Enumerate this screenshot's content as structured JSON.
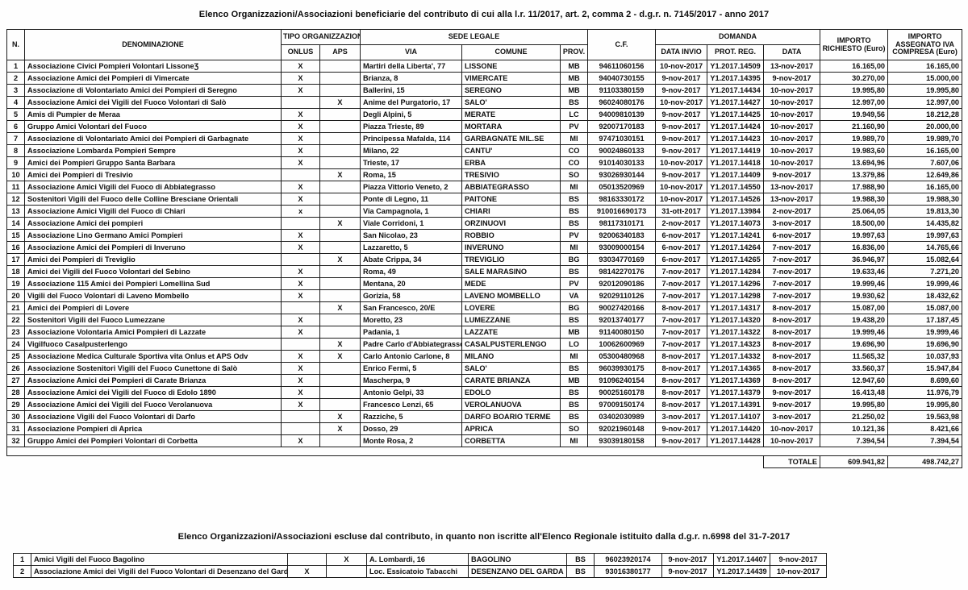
{
  "titles": {
    "main": "Elenco Organizzazioni/Associazioni beneficiarie del contributo di cui alla l.r. 11/2017,  art. 2, comma 2 - d.g.r. n. 7145/2017 - anno 2017",
    "excluded": "Elenco Organizzazioni/Associazioni escluse dal contributo, in quanto non iscritte all'Elenco Regionale istituito dalla d.g.r. n.6998 del 31-7-2017"
  },
  "headers": {
    "n": "N.",
    "denominazione": "DENOMINAZIONE",
    "tipo_organizzazione": "TIPO ORGANIZZAZIONE",
    "onlus": "ONLUS",
    "aps": "APS",
    "sede_legale": "SEDE LEGALE",
    "via": "VIA",
    "comune": "COMUNE",
    "prov": "PROV.",
    "cf": "C.F.",
    "domanda": "DOMANDA",
    "data_invio": "DATA INVIO",
    "prot_reg": "PROT. REG.",
    "data": "DATA",
    "importo_richiesto": "IMPORTO RICHIESTO (Euro)",
    "importo_assegnato": "IMPORTO ASSEGNATO IVA COMPRESA (Euro)"
  },
  "main_table": {
    "rows": [
      [
        "1",
        "Associazione Civici Pompieri Volontari LissoneƷ",
        "X",
        "",
        "Martiri della Liberta', 77",
        "LISSONE",
        "MB",
        "94611060156",
        "10-nov-2017",
        "Y1.2017.14509",
        "13-nov-2017",
        "16.165,00",
        "16.165,00"
      ],
      [
        "2",
        "Associazione Amici dei Pompieri di Vimercate",
        "X",
        "",
        "Brianza, 8",
        "VIMERCATE",
        "MB",
        "94040730155",
        "9-nov-2017",
        "Y1.2017.14395",
        "9-nov-2017",
        "30.270,00",
        "15.000,00"
      ],
      [
        "3",
        "Associazione di Volontariato Amici dei Pompieri di Seregno",
        "X",
        "",
        "Ballerini, 15",
        "SEREGNO",
        "MB",
        "91103380159",
        "9-nov-2017",
        "Y1.2017.14434",
        "10-nov-2017",
        "19.995,80",
        "19.995,80"
      ],
      [
        "4",
        "Associazione Amici dei Vigili del Fuoco Volontari di Salò",
        "",
        "X",
        "Anime del Purgatorio, 17",
        "SALO'",
        "BS",
        "96024080176",
        "10-nov-2017",
        "Y1.2017.14427",
        "10-nov-2017",
        "12.997,00",
        "12.997,00"
      ],
      [
        "5",
        "Amis di Pumpier de Meraa",
        "X",
        "",
        "Degli Alpini, 5",
        "MERATE",
        "LC",
        "94009810139",
        "9-nov-2017",
        "Y1.2017.14425",
        "10-nov-2017",
        "19.949,56",
        "18.212,28"
      ],
      [
        "6",
        "Gruppo Amici Volontari del Fuoco",
        "X",
        "",
        "Piazza Trieste, 89",
        "MORTARA",
        "PV",
        "92007170183",
        "9-nov-2017",
        "Y1.2017.14424",
        "10-nov-2017",
        "21.160,90",
        "20.000,00"
      ],
      [
        "7",
        "Associazione di Volontariato Amici dei Pompieri di Garbagnate",
        "X",
        "",
        "Principessa Mafalda, 114",
        "GARBAGNATE MIL.SE",
        "MI",
        "97471030151",
        "9-nov-2017",
        "Y1.2017.14423",
        "10-nov-2017",
        "19.989,70",
        "19.989,70"
      ],
      [
        "8",
        "Associazione Lombarda Pompieri Sempre",
        "X",
        "",
        "Milano, 22",
        "CANTU'",
        "CO",
        "90024860133",
        "9-nov-2017",
        "Y1.2017.14419",
        "10-nov-2017",
        "19.983,60",
        "16.165,00"
      ],
      [
        "9",
        "Amici dei Pompieri Gruppo Santa Barbara",
        "X",
        "",
        "Trieste, 17",
        "ERBA",
        "CO",
        "91014030133",
        "10-nov-2017",
        "Y1.2017.14418",
        "10-nov-2017",
        "13.694,96",
        "7.607,06"
      ],
      [
        "10",
        "Amici dei Pompieri di Tresivio",
        "",
        "X",
        "Roma, 15",
        "TRESIVIO",
        "SO",
        "93026930144",
        "9-nov-2017",
        "Y1.2017.14409",
        "9-nov-2017",
        "13.379,86",
        "12.649,86"
      ],
      [
        "11",
        "Associazione Amici Vigili del Fuoco di Abbiategrasso",
        "X",
        "",
        "Piazza Vittorio Veneto, 2",
        "ABBIATEGRASSO",
        "MI",
        "05013520969",
        "10-nov-2017",
        "Y1.2017.14550",
        "13-nov-2017",
        "17.988,90",
        "16.165,00"
      ],
      [
        "12",
        "Sostenitori Vigili del Fuoco delle Colline Bresciane Orientali",
        "X",
        "",
        "Ponte di Legno, 11",
        "PAITONE",
        "BS",
        "98163330172",
        "10-nov-2017",
        "Y1.2017.14526",
        "13-nov-2017",
        "19.988,30",
        "19.988,30"
      ],
      [
        "13",
        "Associazione Amici Vigili del Fuoco di Chiari",
        "x",
        "",
        "Via Campagnola, 1",
        "CHIARI",
        "BS",
        "910016690173",
        "31-ott-2017",
        "Y1.2017.13984",
        "2-nov-2017",
        "25.064,05",
        "19.813,30"
      ],
      [
        "14",
        "Associazione Amici dei pompieri",
        "",
        "X",
        "Viale Corridoni, 1",
        "ORZINUOVI",
        "BS",
        "98117310171",
        "2-nov-2017",
        "Y1.2017.14073",
        "3-nov-2017",
        "18.500,00",
        "14.435,82"
      ],
      [
        "15",
        "Associazione Lino Germano Amici Pompieri",
        "X",
        "",
        "San Nicolao, 23",
        "ROBBIO",
        "PV",
        "92006340183",
        "6-nov-2017",
        "Y1.2017.14241",
        "6-nov-2017",
        "19.997,63",
        "19.997,63"
      ],
      [
        "16",
        "Associazione Amici dei Pompieri di Inveruno",
        "X",
        "",
        "Lazzaretto, 5",
        "INVERUNO",
        "MI",
        "93009000154",
        "6-nov-2017",
        "Y1.2017.14264",
        "7-nov-2017",
        "16.836,00",
        "14.765,66"
      ],
      [
        "17",
        "Amici dei Pompieri di Treviglio",
        "",
        "X",
        "Abate Crippa, 34",
        "TREVIGLIO",
        "BG",
        "93034770169",
        "6-nov-2017",
        "Y1.2017.14265",
        "7-nov-2017",
        "36.946,97",
        "15.082,64"
      ],
      [
        "18",
        "Amici dei Vigili del Fuoco Volontari del Sebino",
        "X",
        "",
        "Roma, 49",
        "SALE MARASINO",
        "BS",
        "98142270176",
        "7-nov-2017",
        "Y1.2017.14284",
        "7-nov-2017",
        "19.633,46",
        "7.271,20"
      ],
      [
        "19",
        "Associazione 115 Amici dei Pompieri Lomellina Sud",
        "X",
        "",
        "Mentana, 20",
        "MEDE",
        "PV",
        "92012090186",
        "7-nov-2017",
        "Y1.2017.14296",
        "7-nov-2017",
        "19.999,46",
        "19.999,46"
      ],
      [
        "20",
        "Vigili del Fuoco Volontari di Laveno Mombello",
        "X",
        "",
        "Gorizia, 58",
        "LAVENO MOMBELLO",
        "VA",
        "92029110126",
        "7-nov-2017",
        "Y1.2017.14298",
        "7-nov-2017",
        "19.930,62",
        "18.432,62"
      ],
      [
        "21",
        "Amici dei Pompieri di Lovere",
        "",
        "X",
        "San Francesco, 20/E",
        "LOVERE",
        "BG",
        "90027420166",
        "8-nov-2017",
        "Y1.2017.14317",
        "8-nov-2017",
        "15.087,00",
        "15.087,00"
      ],
      [
        "22",
        "Sostenitori Vigili del Fuoco Lumezzane",
        "X",
        "",
        "Moretto, 23",
        "LUMEZZANE",
        "BS",
        "92013740177",
        "7-nov-2017",
        "Y1.2017.14320",
        "8-nov-2017",
        "19.438,20",
        "17.187,45"
      ],
      [
        "23",
        "Associazione Volontaria Amici Pompieri di Lazzate",
        "X",
        "",
        "Padania, 1",
        "LAZZATE",
        "MB",
        "91140080150",
        "7-nov-2017",
        "Y1.2017.14322",
        "8-nov-2017",
        "19.999,46",
        "19.999,46"
      ],
      [
        "24",
        "Vigilfuoco Casalpusterlengo",
        "",
        "X",
        "Padre Carlo d'Abbiategrasso,",
        "CASALPUSTERLENGO",
        "LO",
        "10062600969",
        "7-nov-2017",
        "Y1.2017.14323",
        "8-nov-2017",
        "19.696,90",
        "19.696,90"
      ],
      [
        "25",
        "Associazione Medica Culturale Sportiva vita Onlus et APS Odv",
        "X",
        "X",
        "Carlo Antonio Carlone, 8",
        "MILANO",
        "MI",
        "05300480968",
        "8-nov-2017",
        "Y1.2017.14332",
        "8-nov-2017",
        "11.565,32",
        "10.037,93"
      ],
      [
        "26",
        "Associazione Sostenitori Vigili del Fuoco Cunettone di Salò",
        "X",
        "",
        "Enrico Fermi, 5",
        "SALO'",
        "BS",
        "96039930175",
        "8-nov-2017",
        "Y1.2017.14365",
        "8-nov-2017",
        "33.560,37",
        "15.947,84"
      ],
      [
        "27",
        "Associazione Amici dei Pompieri di Carate Brianza",
        "X",
        "",
        "Mascherpa, 9",
        "CARATE BRIANZA",
        "MB",
        "91096240154",
        "8-nov-2017",
        "Y1.2017.14369",
        "8-nov-2017",
        "12.947,60",
        "8.699,60"
      ],
      [
        "28",
        "Associazione Amici dei Vigili del Fuoco di Edolo 1890",
        "X",
        "",
        "Antonio Gelpi, 33",
        "EDOLO",
        "BS",
        "90025160178",
        "8-nov-2017",
        "Y1.2017.14379",
        "9-nov-2017",
        "16.413,48",
        "11.976,79"
      ],
      [
        "29",
        "Associazione Amici dei Vigili del Fuoco Verolanuova",
        "X",
        "",
        "Francesco Lenzi, 65",
        "VEROLANUOVA",
        "BS",
        "97009150174",
        "8-nov-2017",
        "Y1.2017.14391",
        "9-nov-2017",
        "19.995,80",
        "19.995,80"
      ],
      [
        "30",
        "Associazione Vigili del Fuoco Volontari di Darfo",
        "",
        "X",
        "Razziche, 5",
        "DARFO BOARIO TERME",
        "BS",
        "03402030989",
        "3-nov-2017",
        "Y1.2017.14107",
        "3-nov-2017",
        "21.250,02",
        "19.563,98"
      ],
      [
        "31",
        "Associazione Pompieri di Aprica",
        "",
        "X",
        "Dosso, 29",
        "APRICA",
        "SO",
        "92021960148",
        "9-nov-2017",
        "Y1.2017.14420",
        "10-nov-2017",
        "10.121,36",
        "8.421,66"
      ],
      [
        "32",
        "Gruppo Amici dei Pompieri Volontari di Corbetta",
        "X",
        "",
        "Monte Rosa, 2",
        "CORBETTA",
        "MI",
        "93039180158",
        "9-nov-2017",
        "Y1.2017.14428",
        "10-nov-2017",
        "7.394,54",
        "7.394,54"
      ]
    ],
    "totale_label": "TOTALE",
    "totale_richiesto": "609.941,82",
    "totale_assegnato": "498.742,27"
  },
  "excluded_table": {
    "rows": [
      [
        "1",
        "Amici Vigili del Fuoco Bagolino",
        "",
        "X",
        "A. Lombardi, 16",
        "BAGOLINO",
        "BS",
        "96023920174",
        "9-nov-2017",
        "Y1.2017.14407",
        "9-nov-2017"
      ],
      [
        "2",
        "Associazione Amici dei Vigili del Fuoco Volontari di Desenzano del Garda",
        "X",
        "",
        "Loc. Essicatoio Tabacchi",
        "DESENZANO DEL GARDA",
        "BS",
        "93016380177",
        "9-nov-2017",
        "Y1.2017.14439",
        "10-nov-2017"
      ]
    ]
  }
}
